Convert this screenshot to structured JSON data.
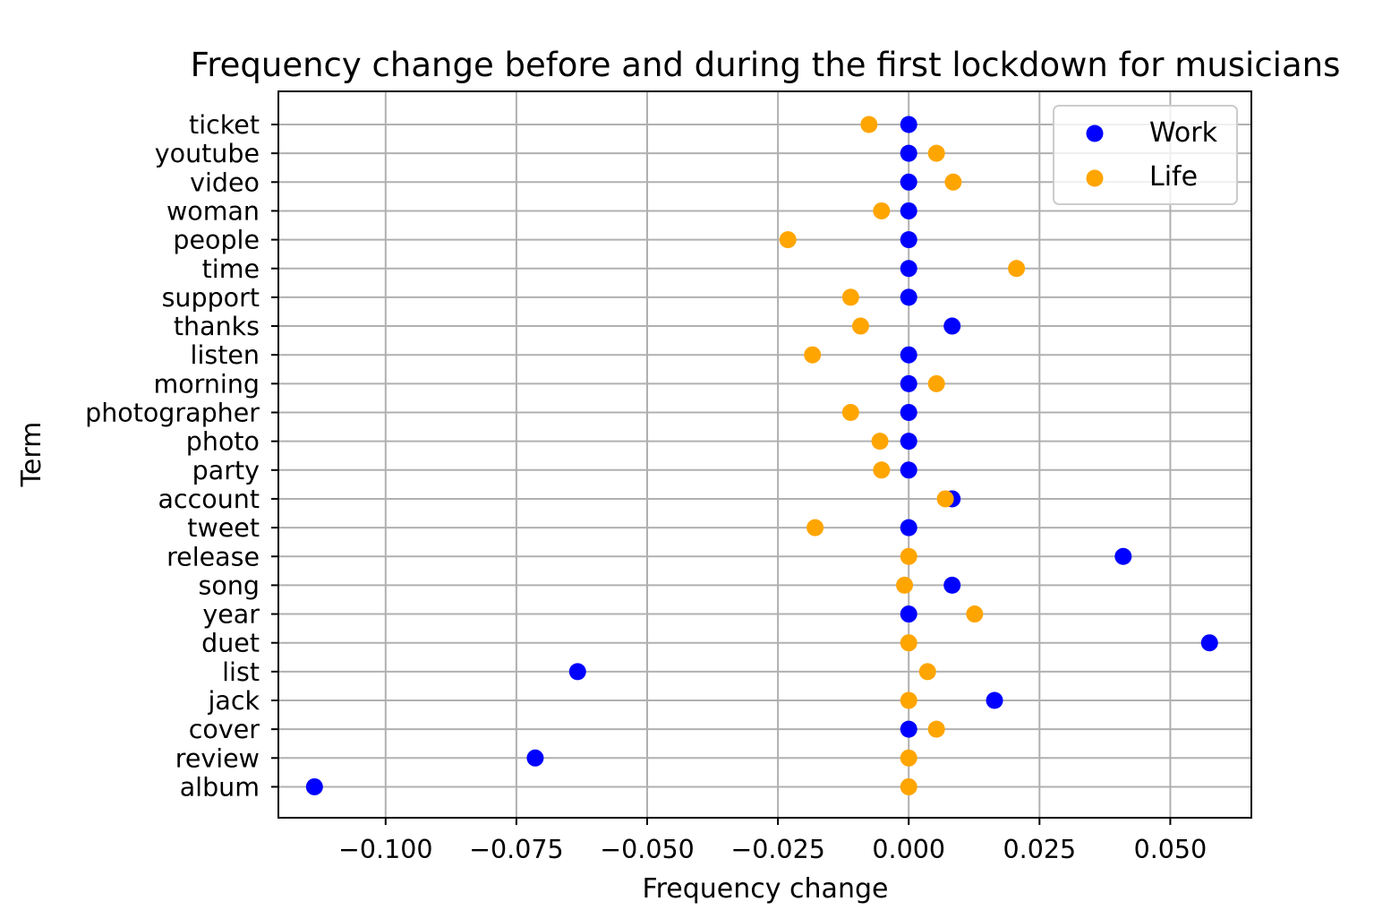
{
  "chart_data": {
    "type": "scatter",
    "title": "Frequency change before and during the first lockdown for musicians",
    "xlabel": "Frequency change",
    "ylabel": "Term",
    "xlim": [
      -0.1205,
      0.0655
    ],
    "xticks": [
      -0.1,
      -0.075,
      -0.05,
      -0.025,
      0.0,
      0.025,
      0.05
    ],
    "xtick_labels": [
      "−0.100",
      "−0.075",
      "−0.050",
      "−0.025",
      "0.000",
      "0.025",
      "0.050"
    ],
    "categories": [
      "album",
      "review",
      "cover",
      "jack",
      "list",
      "duet",
      "year",
      "song",
      "release",
      "tweet",
      "account",
      "party",
      "photo",
      "photographer",
      "morning",
      "listen",
      "thanks",
      "support",
      "time",
      "people",
      "woman",
      "video",
      "youtube",
      "ticket"
    ],
    "series": [
      {
        "name": "Work",
        "color": "#0000ff",
        "values": [
          -0.1136,
          -0.0714,
          0.0,
          0.0164,
          -0.0633,
          0.0575,
          0.0,
          0.0083,
          0.041,
          0.0,
          0.0083,
          0.0,
          0.0,
          0.0,
          0.0,
          0.0,
          0.0083,
          0.0,
          0.0,
          0.0,
          0.0,
          0.0,
          0.0,
          0.0
        ]
      },
      {
        "name": "Life",
        "color": "#ffa500",
        "values": [
          0.0,
          0.0,
          0.0053,
          0.0,
          0.0036,
          0.0,
          0.0126,
          -0.0008,
          0.0,
          -0.0179,
          0.007,
          -0.0052,
          -0.0055,
          -0.0111,
          0.0053,
          -0.0184,
          -0.0092,
          -0.0111,
          0.0206,
          -0.0231,
          -0.0052,
          0.0085,
          0.0053,
          -0.0076
        ]
      }
    ],
    "grid": true,
    "legend_position": "top-right"
  }
}
